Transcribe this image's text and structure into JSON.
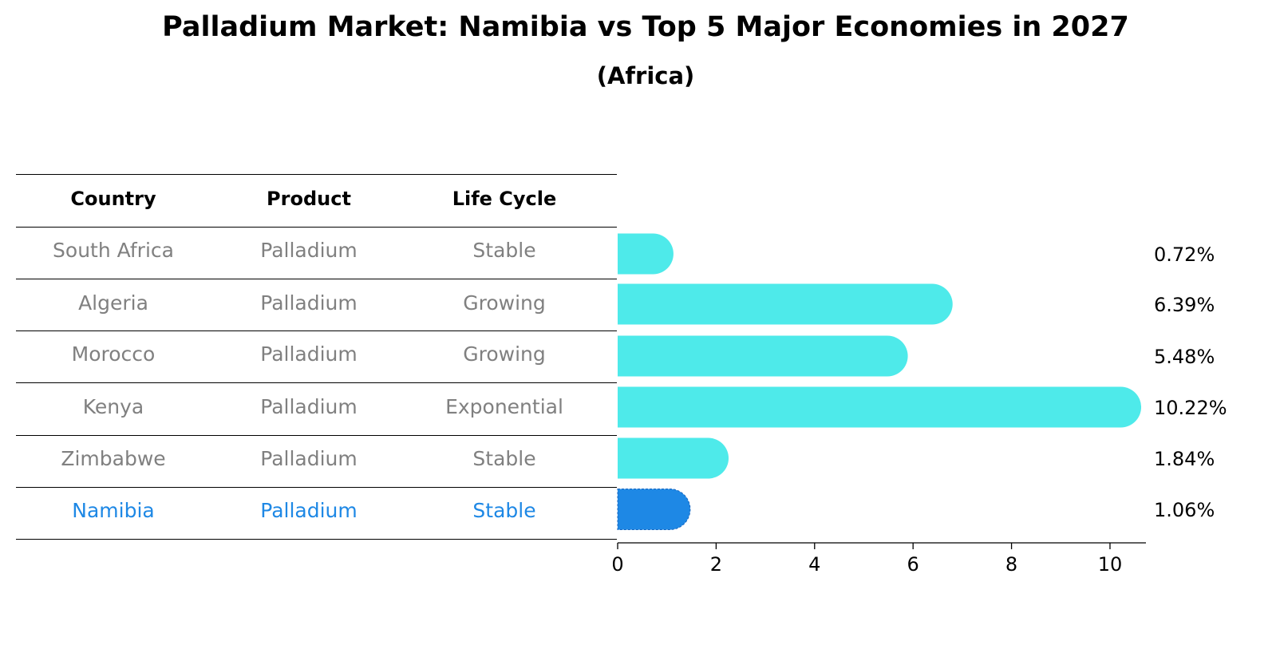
{
  "title": "Palladium Market: Namibia vs Top 5 Major Economies in 2027",
  "subtitle": "(Africa)",
  "table": {
    "headers": [
      "Country",
      "Product",
      "Life Cycle"
    ],
    "rows": [
      {
        "country": "South Africa",
        "product": "Palladium",
        "life_cycle": "Stable"
      },
      {
        "country": "Algeria",
        "product": "Palladium",
        "life_cycle": "Growing"
      },
      {
        "country": "Morocco",
        "product": "Palladium",
        "life_cycle": "Growing"
      },
      {
        "country": "Kenya",
        "product": "Palladium",
        "life_cycle": "Exponential"
      },
      {
        "country": "Zimbabwe",
        "product": "Palladium",
        "life_cycle": "Stable"
      },
      {
        "country": "Namibia",
        "product": "Palladium",
        "life_cycle": "Stable"
      }
    ]
  },
  "colors": {
    "bar": "#4eeaea",
    "highlight_bar": "#1e88e5",
    "row_text": "#808080",
    "highlight_text": "#1e88e5"
  },
  "chart_data": {
    "type": "bar",
    "orientation": "horizontal",
    "categories": [
      "South Africa",
      "Algeria",
      "Morocco",
      "Kenya",
      "Zimbabwe",
      "Namibia"
    ],
    "values": [
      0.72,
      6.39,
      5.48,
      10.22,
      1.84,
      1.06
    ],
    "value_labels": [
      "0.72%",
      "6.39%",
      "5.48%",
      "10.22%",
      "1.84%",
      "1.06%"
    ],
    "highlight_category": "Namibia",
    "xlim": [
      0,
      10.73
    ],
    "xticks": [
      0,
      2,
      4,
      6,
      8,
      10
    ],
    "xtick_labels": [
      "0",
      "2",
      "4",
      "6",
      "8",
      "10"
    ],
    "xlabel": "",
    "ylabel": "",
    "grid": false
  }
}
